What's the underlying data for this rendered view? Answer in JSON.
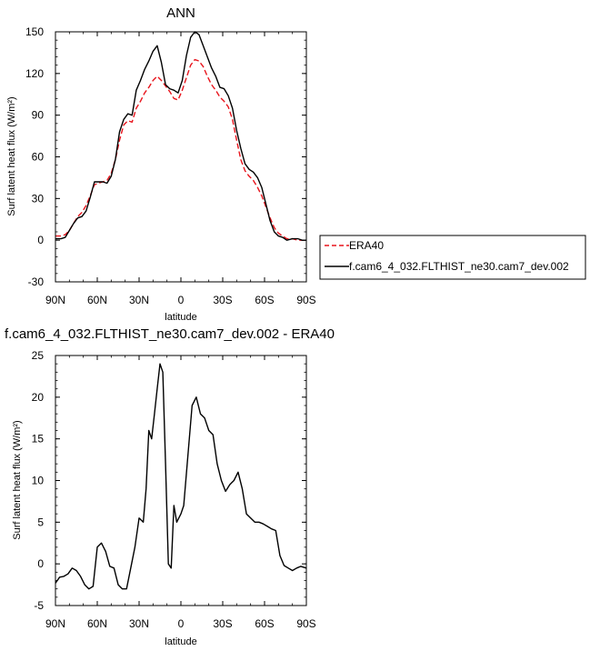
{
  "chart_data": [
    {
      "type": "line",
      "title": "ANN",
      "xlabel": "latitude",
      "ylabel": "Surf latent heat flux (W/m²)",
      "xlim": [
        90,
        -90
      ],
      "ylim": [
        -30,
        150
      ],
      "x_ticks": [
        90,
        60,
        30,
        0,
        -30,
        -60,
        -90
      ],
      "x_tick_labels": [
        "90N",
        "60N",
        "30N",
        "0",
        "30S",
        "60S",
        "90S"
      ],
      "y_ticks": [
        -30,
        0,
        30,
        60,
        90,
        120,
        150
      ],
      "y_tick_labels": [
        "-30",
        "0",
        "30",
        "60",
        "90",
        "120",
        "150"
      ],
      "grid": false,
      "legend_position": "outside-right",
      "series": [
        {
          "name": "ERA40",
          "color": "#e8141c",
          "dash": "dashed",
          "points": [
            [
              90,
              3
            ],
            [
              86,
              3
            ],
            [
              83,
              4
            ],
            [
              80,
              7
            ],
            [
              77,
              12
            ],
            [
              74,
              17
            ],
            [
              71,
              20
            ],
            [
              68,
              25
            ],
            [
              65,
              32
            ],
            [
              62,
              40
            ],
            [
              59,
              41
            ],
            [
              56,
              42
            ],
            [
              53,
              43
            ],
            [
              50,
              48
            ],
            [
              47,
              58
            ],
            [
              44,
              72
            ],
            [
              41,
              83
            ],
            [
              38,
              86
            ],
            [
              35,
              85
            ],
            [
              32,
              95
            ],
            [
              29,
              100
            ],
            [
              26,
              106
            ],
            [
              23,
              110
            ],
            [
              20,
              115
            ],
            [
              17,
              118
            ],
            [
              14,
              115
            ],
            [
              11,
              111
            ],
            [
              8,
              107
            ],
            [
              5,
              102
            ],
            [
              2,
              101
            ],
            [
              -1,
              108
            ],
            [
              -4,
              117
            ],
            [
              -7,
              126
            ],
            [
              -10,
              130
            ],
            [
              -13,
              129
            ],
            [
              -16,
              125
            ],
            [
              -19,
              118
            ],
            [
              -22,
              112
            ],
            [
              -25,
              108
            ],
            [
              -28,
              103
            ],
            [
              -31,
              100
            ],
            [
              -34,
              96
            ],
            [
              -37,
              87
            ],
            [
              -40,
              72
            ],
            [
              -43,
              58
            ],
            [
              -46,
              50
            ],
            [
              -49,
              46
            ],
            [
              -52,
              43
            ],
            [
              -55,
              38
            ],
            [
              -58,
              32
            ],
            [
              -61,
              24
            ],
            [
              -64,
              16
            ],
            [
              -67,
              9
            ],
            [
              -70,
              5
            ],
            [
              -73,
              3
            ],
            [
              -76,
              1
            ],
            [
              -80,
              1
            ],
            [
              -84,
              0
            ],
            [
              -87,
              0
            ],
            [
              -90,
              0
            ]
          ]
        },
        {
          "name": "f.cam6_4_032.FLTHIST_ne30.cam7_dev.002",
          "color": "#000000",
          "dash": "solid",
          "points": [
            [
              90,
              1
            ],
            [
              86,
              1
            ],
            [
              83,
              2
            ],
            [
              80,
              7
            ],
            [
              77,
              12
            ],
            [
              74,
              16
            ],
            [
              71,
              17
            ],
            [
              68,
              21
            ],
            [
              65,
              31
            ],
            [
              62,
              42
            ],
            [
              59,
              42
            ],
            [
              56,
              42
            ],
            [
              53,
              41
            ],
            [
              50,
              46
            ],
            [
              47,
              58
            ],
            [
              44,
              78
            ],
            [
              41,
              87
            ],
            [
              38,
              91
            ],
            [
              35,
              90
            ],
            [
              32,
              108
            ],
            [
              29,
              115
            ],
            [
              26,
              123
            ],
            [
              23,
              129
            ],
            [
              20,
              136
            ],
            [
              17,
              140
            ],
            [
              14,
              128
            ],
            [
              11,
              112
            ],
            [
              8,
              109
            ],
            [
              5,
              108
            ],
            [
              2,
              106
            ],
            [
              -1,
              115
            ],
            [
              -4,
              133
            ],
            [
              -7,
              146
            ],
            [
              -10,
              150
            ],
            [
              -13,
              148
            ],
            [
              -16,
              140
            ],
            [
              -19,
              132
            ],
            [
              -22,
              124
            ],
            [
              -25,
              118
            ],
            [
              -28,
              110
            ],
            [
              -31,
              109
            ],
            [
              -34,
              104
            ],
            [
              -37,
              95
            ],
            [
              -40,
              79
            ],
            [
              -43,
              66
            ],
            [
              -46,
              55
            ],
            [
              -49,
              51
            ],
            [
              -52,
              49
            ],
            [
              -55,
              45
            ],
            [
              -58,
              38
            ],
            [
              -61,
              26
            ],
            [
              -64,
              14
            ],
            [
              -67,
              6
            ],
            [
              -70,
              3
            ],
            [
              -73,
              2
            ],
            [
              -76,
              0
            ],
            [
              -80,
              1
            ],
            [
              -84,
              1
            ],
            [
              -87,
              0
            ],
            [
              -90,
              0
            ]
          ]
        }
      ]
    },
    {
      "type": "line",
      "title": "f.cam6_4_032.FLTHIST_ne30.cam7_dev.002 - ERA40",
      "xlabel": "latitude",
      "ylabel": "Surf latent heat flux (W/m²)",
      "xlim": [
        90,
        -90
      ],
      "ylim": [
        -5,
        25
      ],
      "x_ticks": [
        90,
        60,
        30,
        0,
        -30,
        -60,
        -90
      ],
      "x_tick_labels": [
        "90N",
        "60N",
        "30N",
        "0",
        "30S",
        "60S",
        "90S"
      ],
      "y_ticks": [
        -5,
        0,
        5,
        10,
        15,
        20,
        25
      ],
      "y_tick_labels": [
        "-5",
        "0",
        "5",
        "10",
        "15",
        "20",
        "25"
      ],
      "grid": false,
      "series": [
        {
          "color": "#000000",
          "dash": "solid",
          "points": [
            [
              90,
              -2.3
            ],
            [
              87,
              -1.6
            ],
            [
              84,
              -1.5
            ],
            [
              81,
              -1.2
            ],
            [
              78,
              -0.5
            ],
            [
              75,
              -0.8
            ],
            [
              72,
              -1.5
            ],
            [
              69,
              -2.5
            ],
            [
              66,
              -3
            ],
            [
              63,
              -2.7
            ],
            [
              60,
              2
            ],
            [
              57,
              2.5
            ],
            [
              54,
              1.5
            ],
            [
              51,
              -0.3
            ],
            [
              48,
              -0.5
            ],
            [
              45,
              -2.5
            ],
            [
              42,
              -3
            ],
            [
              39,
              -3
            ],
            [
              36,
              -0.5
            ],
            [
              33,
              2
            ],
            [
              30,
              5.5
            ],
            [
              27,
              5
            ],
            [
              25,
              9
            ],
            [
              23,
              16
            ],
            [
              21,
              15
            ],
            [
              19,
              18
            ],
            [
              17,
              21
            ],
            [
              15,
              24
            ],
            [
              13,
              23
            ],
            [
              11,
              12
            ],
            [
              9,
              0
            ],
            [
              7,
              -0.5
            ],
            [
              5,
              7
            ],
            [
              3,
              5
            ],
            [
              0,
              6
            ],
            [
              -2,
              7
            ],
            [
              -5,
              13
            ],
            [
              -8,
              19
            ],
            [
              -11,
              20
            ],
            [
              -14,
              18
            ],
            [
              -17,
              17.5
            ],
            [
              -20,
              16
            ],
            [
              -23,
              15.5
            ],
            [
              -26,
              12
            ],
            [
              -29,
              10
            ],
            [
              -32,
              8.7
            ],
            [
              -35,
              9.5
            ],
            [
              -38,
              10
            ],
            [
              -41,
              11
            ],
            [
              -44,
              9
            ],
            [
              -47,
              6
            ],
            [
              -50,
              5.5
            ],
            [
              -53,
              5
            ],
            [
              -56,
              5
            ],
            [
              -59,
              4.8
            ],
            [
              -62,
              4.5
            ],
            [
              -65,
              4.2
            ],
            [
              -68,
              4
            ],
            [
              -71,
              1
            ],
            [
              -74,
              -0.2
            ],
            [
              -77,
              -0.5
            ],
            [
              -80,
              -0.8
            ],
            [
              -83,
              -0.5
            ],
            [
              -86,
              -0.3
            ],
            [
              -90,
              -0.5
            ]
          ]
        }
      ]
    }
  ]
}
